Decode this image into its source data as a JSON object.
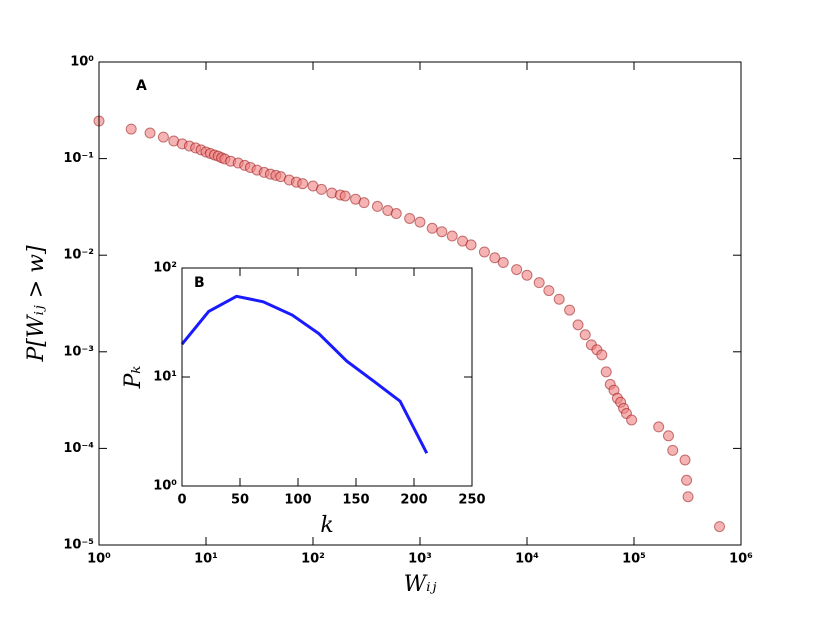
{
  "chart_data": [
    {
      "type": "scatter",
      "xscale": "log",
      "yscale": "log",
      "xlabel": "Wᵢⱼ",
      "ylabel": "P[Wᵢⱼ > w]",
      "annotation": "A",
      "color": "#f08080",
      "edgecolor": "#8b0000",
      "xlim": [
        1,
        1000000
      ],
      "ylim": [
        1e-05,
        1
      ],
      "xticks": [
        {
          "value": 1,
          "label": "10⁰"
        },
        {
          "value": 10,
          "label": "10¹"
        },
        {
          "value": 100,
          "label": "10²"
        },
        {
          "value": 1000,
          "label": "10³"
        },
        {
          "value": 10000,
          "label": "10⁴"
        },
        {
          "value": 100000,
          "label": "10⁵"
        },
        {
          "value": 1000000,
          "label": "10⁶"
        }
      ],
      "yticks": [
        {
          "value": 1e-05,
          "label": "10⁻⁵"
        },
        {
          "value": 0.0001,
          "label": "10⁻⁴"
        },
        {
          "value": 0.001,
          "label": "10⁻³"
        },
        {
          "value": 0.01,
          "label": "10⁻²"
        },
        {
          "value": 0.1,
          "label": "10⁻¹"
        },
        {
          "value": 1,
          "label": "10⁰"
        }
      ],
      "x": [
        1,
        2,
        3,
        4,
        5,
        6,
        7,
        8,
        9,
        10,
        11,
        12,
        13,
        14,
        15,
        17,
        20,
        23,
        26,
        30,
        35,
        40,
        45,
        50,
        60,
        70,
        80,
        100,
        120,
        150,
        180,
        200,
        250,
        300,
        400,
        500,
        600,
        800,
        1000,
        1300,
        1600,
        2000,
        2500,
        3000,
        4000,
        5000,
        6000,
        8000,
        10000,
        13000,
        16000,
        20000,
        25000,
        30000,
        35000,
        40000,
        45000,
        50000,
        55000,
        60000,
        65000,
        70000,
        75000,
        80000,
        85000,
        95000,
        170000,
        210000,
        230000,
        300000,
        310000,
        320000,
        630000
      ],
      "values": [
        0.245,
        0.202,
        0.184,
        0.167,
        0.152,
        0.142,
        0.135,
        0.129,
        0.123,
        0.117,
        0.113,
        0.109,
        0.106,
        0.102,
        0.099,
        0.094,
        0.09,
        0.085,
        0.081,
        0.076,
        0.072,
        0.069,
        0.067,
        0.065,
        0.06,
        0.057,
        0.055,
        0.052,
        0.048,
        0.044,
        0.042,
        0.041,
        0.038,
        0.035,
        0.032,
        0.029,
        0.027,
        0.024,
        0.022,
        0.019,
        0.0175,
        0.0158,
        0.014,
        0.0128,
        0.0108,
        0.0094,
        0.0084,
        0.0071,
        0.0062,
        0.0052,
        0.0043,
        0.0035,
        0.0027,
        0.0019,
        0.0015,
        0.00118,
        0.00105,
        0.00093,
        0.00062,
        0.00046,
        0.0004,
        0.00033,
        0.0003,
        0.00026,
        0.00023,
        0.000197,
        0.000167,
        0.000135,
        9.55e-05,
        7.59e-05,
        4.68e-05,
        3.16e-05,
        1.55e-05
      ]
    },
    {
      "type": "line",
      "yscale": "log",
      "xlabel": "k",
      "ylabel": "Pₖ",
      "annotation": "B",
      "color": "#1a1aff",
      "xlim": [
        0,
        250
      ],
      "ylim": [
        1,
        100
      ],
      "xticks": [
        0,
        50,
        100,
        150,
        200,
        250
      ],
      "yticks": [
        {
          "value": 1,
          "label": "10⁰"
        },
        {
          "value": 10,
          "label": "10¹"
        },
        {
          "value": 100,
          "label": "10²"
        }
      ],
      "x": [
        0,
        23,
        47,
        70,
        95,
        118,
        142,
        165,
        188,
        211
      ],
      "values": [
        20,
        40,
        55,
        49,
        37,
        25,
        14,
        9.2,
        6.0,
        2.0
      ]
    }
  ]
}
